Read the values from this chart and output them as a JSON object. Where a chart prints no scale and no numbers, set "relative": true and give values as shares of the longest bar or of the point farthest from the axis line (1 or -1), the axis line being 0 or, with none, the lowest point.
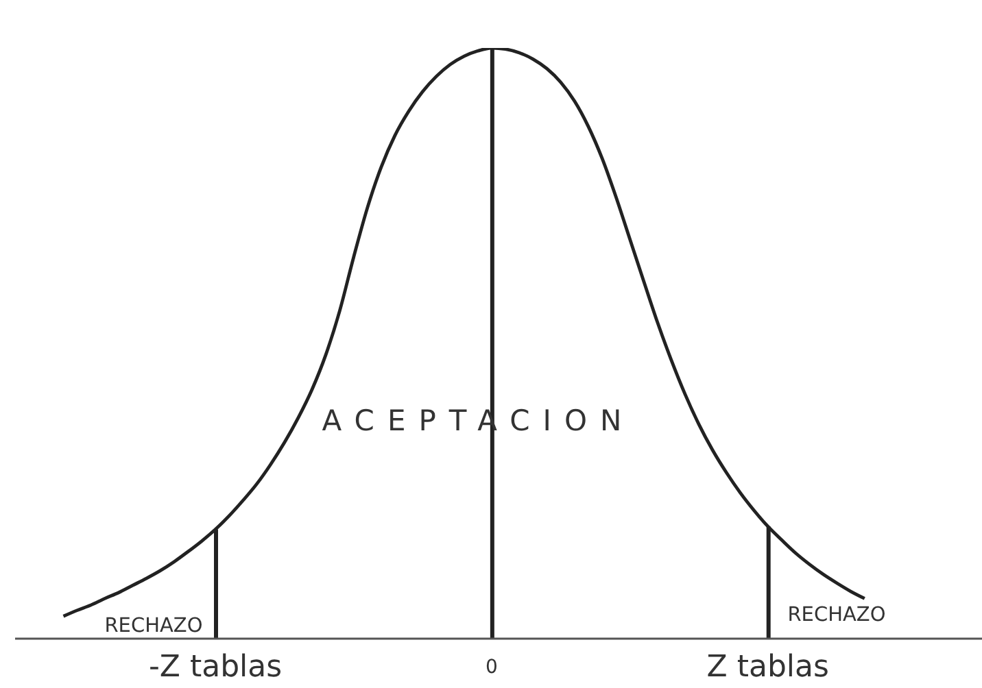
{
  "chart_data": {
    "type": "line",
    "relative": true,
    "marker": "none",
    "categories": [
      null,
      null,
      null,
      null,
      null,
      null,
      null,
      null,
      null,
      null,
      null,
      null,
      null,
      null,
      "-Z tablas",
      null,
      null,
      null,
      null,
      null,
      null,
      null,
      null,
      null,
      null,
      null,
      null,
      null,
      null,
      null,
      null,
      null,
      null,
      null,
      "0",
      null,
      null,
      null,
      null,
      null,
      null,
      null,
      null,
      null,
      null,
      null,
      null,
      null,
      null,
      null,
      null,
      null,
      null,
      null,
      "Z tablas",
      null,
      null,
      null,
      null,
      null,
      null,
      null,
      null,
      null,
      null,
      null,
      null,
      null,
      null,
      null
    ],
    "series": [
      {
        "color": "#222222",
        "values": [
          null,
          null,
          null,
          0.038,
          0.048,
          0.057,
          0.068,
          0.078,
          0.09,
          0.102,
          0.115,
          0.13,
          0.147,
          0.165,
          0.185,
          0.208,
          0.234,
          0.262,
          0.295,
          0.332,
          0.374,
          0.422,
          0.481,
          0.555,
          0.645,
          0.729,
          0.798,
          0.852,
          0.893,
          0.926,
          0.952,
          0.972,
          0.986,
          0.995,
          1,
          0.998,
          0.992,
          0.981,
          0.965,
          0.942,
          0.91,
          0.867,
          0.813,
          0.748,
          0.677,
          0.606,
          0.536,
          0.472,
          0.414,
          0.363,
          0.319,
          0.281,
          0.247,
          0.217,
          0.19,
          0.167,
          0.145,
          0.126,
          0.109,
          0.094,
          0.08,
          0.068,
          null,
          null,
          null,
          null,
          null,
          null,
          null,
          null
        ]
      },
      {
        "type": "bar",
        "color": "#222222",
        "values": [
          null,
          null,
          null,
          null,
          null,
          null,
          null,
          null,
          null,
          null,
          null,
          null,
          null,
          null,
          0.185,
          null,
          null,
          null,
          null,
          null,
          null,
          null,
          null,
          null,
          null,
          null,
          null,
          null,
          null,
          null,
          null,
          null,
          null,
          null,
          1,
          null,
          null,
          null,
          null,
          null,
          null,
          null,
          null,
          null,
          null,
          null,
          null,
          null,
          null,
          null,
          null,
          null,
          null,
          null,
          0.19,
          null,
          null,
          null,
          null,
          null,
          null,
          null,
          null,
          null,
          null,
          null,
          null,
          null,
          null,
          null
        ]
      }
    ],
    "annotations": [
      "ACEPTACION",
      "RECHAZO",
      "RECHAZO"
    ]
  }
}
